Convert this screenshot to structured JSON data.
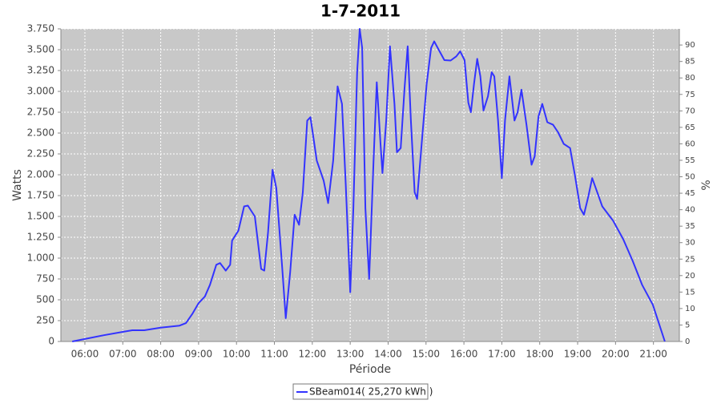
{
  "chart_data": {
    "type": "line",
    "title": "1-7-2011",
    "x_label": "Période",
    "y_label": "Watts",
    "y2_label": "%",
    "xlim": [
      "05:22",
      "21:41"
    ],
    "xticks": [
      "06:00",
      "07:00",
      "08:00",
      "09:00",
      "10:00",
      "11:00",
      "12:00",
      "13:00",
      "14:00",
      "15:00",
      "16:00",
      "17:00",
      "18:00",
      "19:00",
      "20:00",
      "21:00"
    ],
    "ylim": [
      0,
      3750
    ],
    "yticks": [
      0,
      250,
      500,
      750,
      {
        "value": 1000,
        "label": "1.000"
      },
      {
        "value": 1250,
        "label": "1.250"
      },
      {
        "value": 1500,
        "label": "1.500"
      },
      {
        "value": 1750,
        "label": "1.750"
      },
      {
        "value": 2000,
        "label": "2.000"
      },
      {
        "value": 2250,
        "label": "2.250"
      },
      {
        "value": 2500,
        "label": "2.500"
      },
      {
        "value": 2750,
        "label": "2.750"
      },
      {
        "value": 3000,
        "label": "3.000"
      },
      {
        "value": 3250,
        "label": "3.250"
      },
      {
        "value": 3500,
        "label": "3.500"
      },
      {
        "value": 3750,
        "label": "3.750"
      }
    ],
    "y2lim": [
      0,
      94.9
    ],
    "y2ticks": [
      0,
      5,
      10,
      15,
      20,
      25,
      30,
      35,
      40,
      45,
      50,
      55,
      60,
      65,
      70,
      75,
      80,
      85,
      90
    ],
    "grid": true,
    "legend": "bottom",
    "series": [
      {
        "name": "SBeam014( 25,270 kWh )",
        "color": "#3333ff",
        "x": [
          "05:40",
          "06:00",
          "06:30",
          "07:00",
          "07:15",
          "07:34",
          "08:00",
          "08:30",
          "08:40",
          "08:50",
          "09:00",
          "09:10",
          "09:18",
          "09:28",
          "09:34",
          "09:43",
          "09:50",
          "09:53",
          "10:03",
          "10:12",
          "10:18",
          "10:29",
          "10:39",
          "10:44",
          "10:50",
          "10:57",
          "11:03",
          "11:12",
          "11:18",
          "11:25",
          "11:32",
          "11:39",
          "11:45",
          "11:52",
          "11:57",
          "12:07",
          "12:18",
          "12:25",
          "12:33",
          "12:40",
          "12:47",
          "12:53",
          "13:00",
          "13:05",
          "13:11",
          "13:15",
          "13:19",
          "13:24",
          "13:30",
          "13:37",
          "13:42",
          "13:48",
          "13:51",
          "13:57",
          "14:03",
          "14:10",
          "14:14",
          "14:20",
          "14:26",
          "14:31",
          "14:36",
          "14:42",
          "14:46",
          "14:54",
          "15:01",
          "15:08",
          "15:13",
          "15:20",
          "15:29",
          "15:39",
          "15:48",
          "15:54",
          "16:01",
          "16:07",
          "16:11",
          "16:16",
          "16:21",
          "16:26",
          "16:31",
          "16:38",
          "16:44",
          "16:48",
          "16:54",
          "17:00",
          "17:05",
          "17:12",
          "17:20",
          "17:25",
          "17:31",
          "17:39",
          "17:47",
          "17:52",
          "17:58",
          "18:04",
          "18:12",
          "18:21",
          "18:29",
          "18:38",
          "18:48",
          "18:56",
          "19:04",
          "19:10",
          "19:17",
          "19:23",
          "19:31",
          "19:39",
          "19:56",
          "20:12",
          "20:27",
          "20:42",
          "20:59",
          "21:18"
        ],
        "values": [
          0,
          30,
          75,
          115,
          135,
          135,
          165,
          190,
          220,
          330,
          460,
          540,
          680,
          920,
          940,
          850,
          920,
          1210,
          1330,
          1620,
          1630,
          1500,
          870,
          850,
          1310,
          2060,
          1840,
          920,
          280,
          830,
          1520,
          1400,
          1790,
          2650,
          2690,
          2170,
          1930,
          1660,
          2170,
          3060,
          2850,
          1880,
          590,
          1600,
          3230,
          3750,
          3520,
          1600,
          750,
          2170,
          3110,
          2370,
          2020,
          2650,
          3540,
          2850,
          2270,
          2320,
          3040,
          3540,
          2650,
          1790,
          1710,
          2460,
          3090,
          3520,
          3600,
          3500,
          3375,
          3370,
          3420,
          3480,
          3375,
          2865,
          2750,
          3090,
          3390,
          3180,
          2770,
          2940,
          3230,
          3180,
          2650,
          1960,
          2650,
          3180,
          2650,
          2750,
          3020,
          2600,
          2120,
          2220,
          2700,
          2850,
          2630,
          2600,
          2510,
          2370,
          2320,
          1980,
          1600,
          1520,
          1740,
          1960,
          1790,
          1620,
          1450,
          1230,
          970,
          680,
          440,
          0
        ]
      }
    ]
  }
}
